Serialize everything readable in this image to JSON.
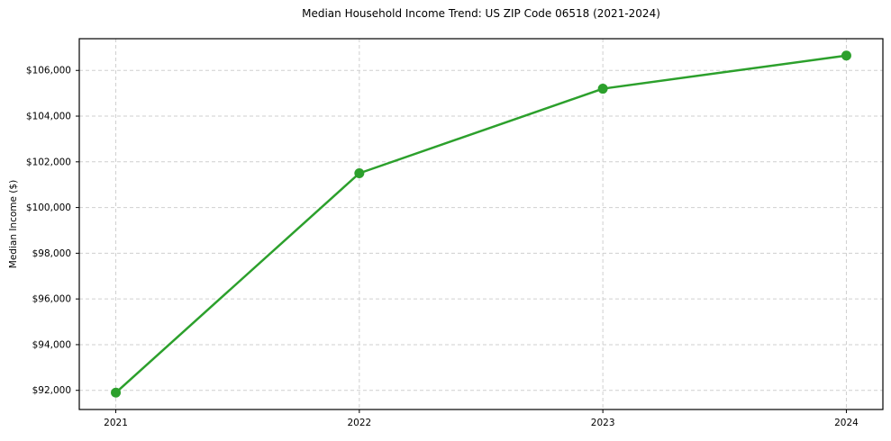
{
  "chart_data": {
    "type": "line",
    "title": "Median Household Income Trend: US ZIP Code 06518 (2021-2024)",
    "xlabel": "",
    "ylabel": "Median Income ($)",
    "x": [
      2021,
      2022,
      2023,
      2024
    ],
    "x_tick_labels": [
      "2021",
      "2022",
      "2023",
      "2024"
    ],
    "series": [
      {
        "name": "Median Household Income",
        "values": [
          91900,
          101500,
          105200,
          106650
        ],
        "color": "#2ca02c"
      }
    ],
    "y_ticks": [
      92000,
      94000,
      96000,
      98000,
      100000,
      102000,
      104000,
      106000
    ],
    "y_tick_labels": [
      "$92,000",
      "$94,000",
      "$96,000",
      "$98,000",
      "$100,000",
      "$102,000",
      "$104,000",
      "$106,000"
    ],
    "xlim": [
      2020.85,
      2024.15
    ],
    "ylim": [
      91162,
      107388
    ],
    "grid": true,
    "grid_style": "dashed",
    "legend": "none",
    "colors": {
      "line": "#2ca02c",
      "grid": "#cfcfcf",
      "axis_frame": "#000000",
      "text": "#000000",
      "background": "#ffffff"
    }
  }
}
